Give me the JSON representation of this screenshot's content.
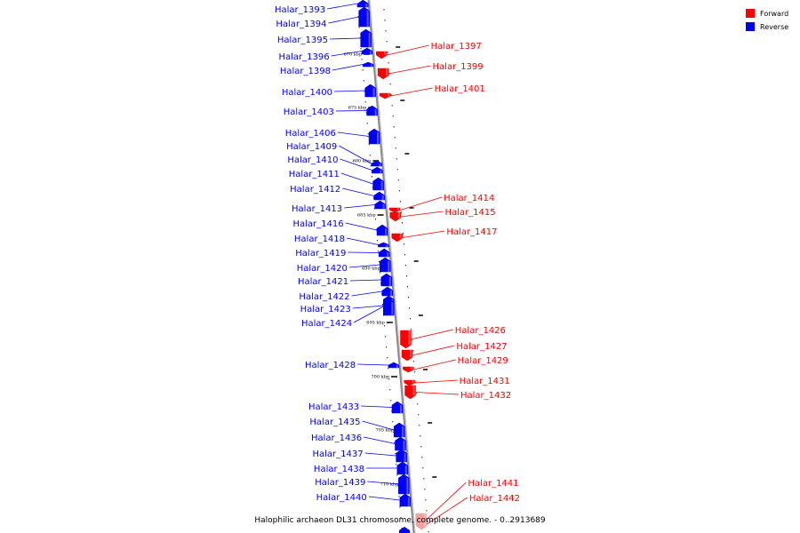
{
  "caption": "Halophilic archaeon DL31 chromosome, complete genome. - 0..2913689",
  "legend": [
    {
      "label": "Forward",
      "color": "#ff0000"
    },
    {
      "label": "Reverse",
      "color": "#0000ff"
    }
  ],
  "colors": {
    "forward": "#ff0000",
    "reverse": "#0000ff",
    "forward_faded": "#f4a0a0",
    "backbone": "#999999"
  },
  "genes": [
    {
      "name": "Halar_1393",
      "strand": "reverse"
    },
    {
      "name": "Halar_1394",
      "strand": "reverse"
    },
    {
      "name": "Halar_1395",
      "strand": "reverse"
    },
    {
      "name": "Halar_1396",
      "strand": "reverse"
    },
    {
      "name": "Halar_1397",
      "strand": "forward"
    },
    {
      "name": "Halar_1398",
      "strand": "reverse"
    },
    {
      "name": "Halar_1399",
      "strand": "forward"
    },
    {
      "name": "Halar_1400",
      "strand": "reverse"
    },
    {
      "name": "Halar_1401",
      "strand": "forward"
    },
    {
      "name": "Halar_1403",
      "strand": "reverse"
    },
    {
      "name": "Halar_1406",
      "strand": "reverse"
    },
    {
      "name": "Halar_1409",
      "strand": "reverse"
    },
    {
      "name": "Halar_1410",
      "strand": "reverse"
    },
    {
      "name": "Halar_1411",
      "strand": "reverse"
    },
    {
      "name": "Halar_1412",
      "strand": "reverse"
    },
    {
      "name": "Halar_1413",
      "strand": "reverse"
    },
    {
      "name": "Halar_1414",
      "strand": "forward"
    },
    {
      "name": "Halar_1415",
      "strand": "forward"
    },
    {
      "name": "Halar_1416",
      "strand": "reverse"
    },
    {
      "name": "Halar_1417",
      "strand": "forward"
    },
    {
      "name": "Halar_1418",
      "strand": "reverse"
    },
    {
      "name": "Halar_1419",
      "strand": "reverse"
    },
    {
      "name": "Halar_1420",
      "strand": "reverse"
    },
    {
      "name": "Halar_1421",
      "strand": "reverse"
    },
    {
      "name": "Halar_1422",
      "strand": "reverse"
    },
    {
      "name": "Halar_1423",
      "strand": "reverse"
    },
    {
      "name": "Halar_1424",
      "strand": "reverse"
    },
    {
      "name": "Halar_1426",
      "strand": "forward"
    },
    {
      "name": "Halar_1427",
      "strand": "forward"
    },
    {
      "name": "Halar_1428",
      "strand": "reverse"
    },
    {
      "name": "Halar_1429",
      "strand": "forward"
    },
    {
      "name": "Halar_1431",
      "strand": "forward"
    },
    {
      "name": "Halar_1432",
      "strand": "forward"
    },
    {
      "name": "Halar_1433",
      "strand": "reverse"
    },
    {
      "name": "Halar_1435",
      "strand": "reverse"
    },
    {
      "name": "Halar_1436",
      "strand": "reverse"
    },
    {
      "name": "Halar_1437",
      "strand": "reverse"
    },
    {
      "name": "Halar_1438",
      "strand": "reverse"
    },
    {
      "name": "Halar_1439",
      "strand": "reverse"
    },
    {
      "name": "Halar_1440",
      "strand": "reverse"
    },
    {
      "name": "Halar_1441",
      "strand": "forward"
    },
    {
      "name": "Halar_1442",
      "strand": "forward"
    }
  ],
  "ticks": [
    "670 kbp",
    "675 kbp",
    "680 kbp",
    "685 kbp",
    "690 kbp",
    "695 kbp",
    "700 kbp",
    "705 kbp",
    "710 kbp"
  ]
}
